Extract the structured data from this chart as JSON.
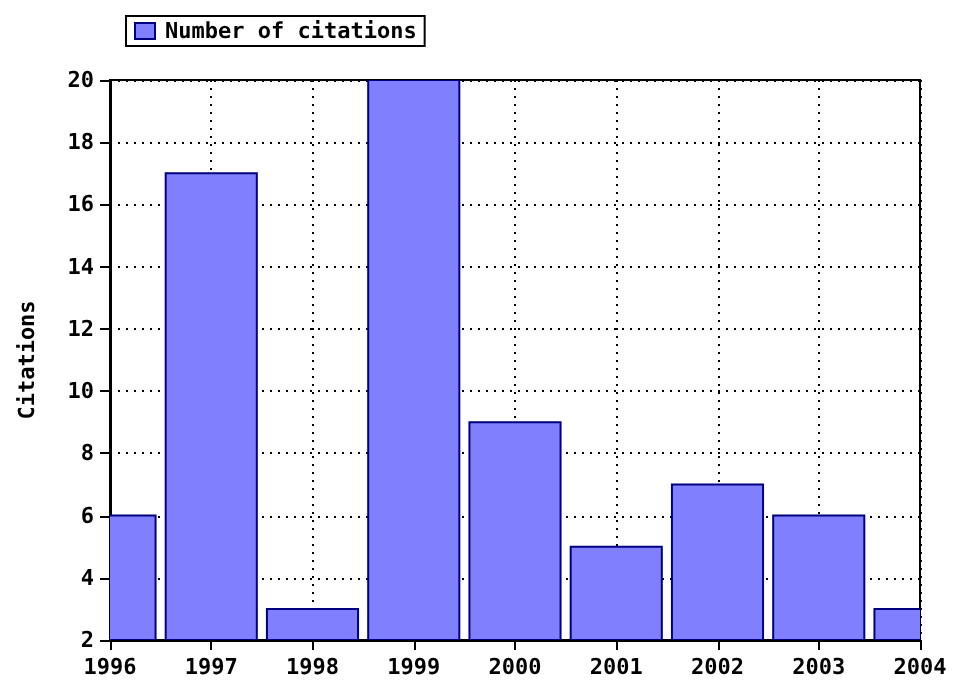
{
  "chart_data": {
    "type": "bar",
    "ylabel": "Citations",
    "x": [
      1996,
      1997,
      1998,
      1999,
      2000,
      2001,
      2002,
      2003,
      2004
    ],
    "series": [
      {
        "name": "Number of citations",
        "color": "#8080ff",
        "values": [
          6,
          17,
          3,
          20,
          9,
          5,
          7,
          6,
          3
        ]
      }
    ],
    "xlim": [
      1996,
      2004
    ],
    "xticks": [
      1996,
      1997,
      1998,
      1999,
      2000,
      2001,
      2002,
      2003,
      2004
    ],
    "ylim": [
      2,
      20
    ],
    "yticks": [
      2,
      4,
      6,
      8,
      10,
      12,
      14,
      16,
      18,
      20
    ],
    "grid": true,
    "legend": "top left"
  }
}
